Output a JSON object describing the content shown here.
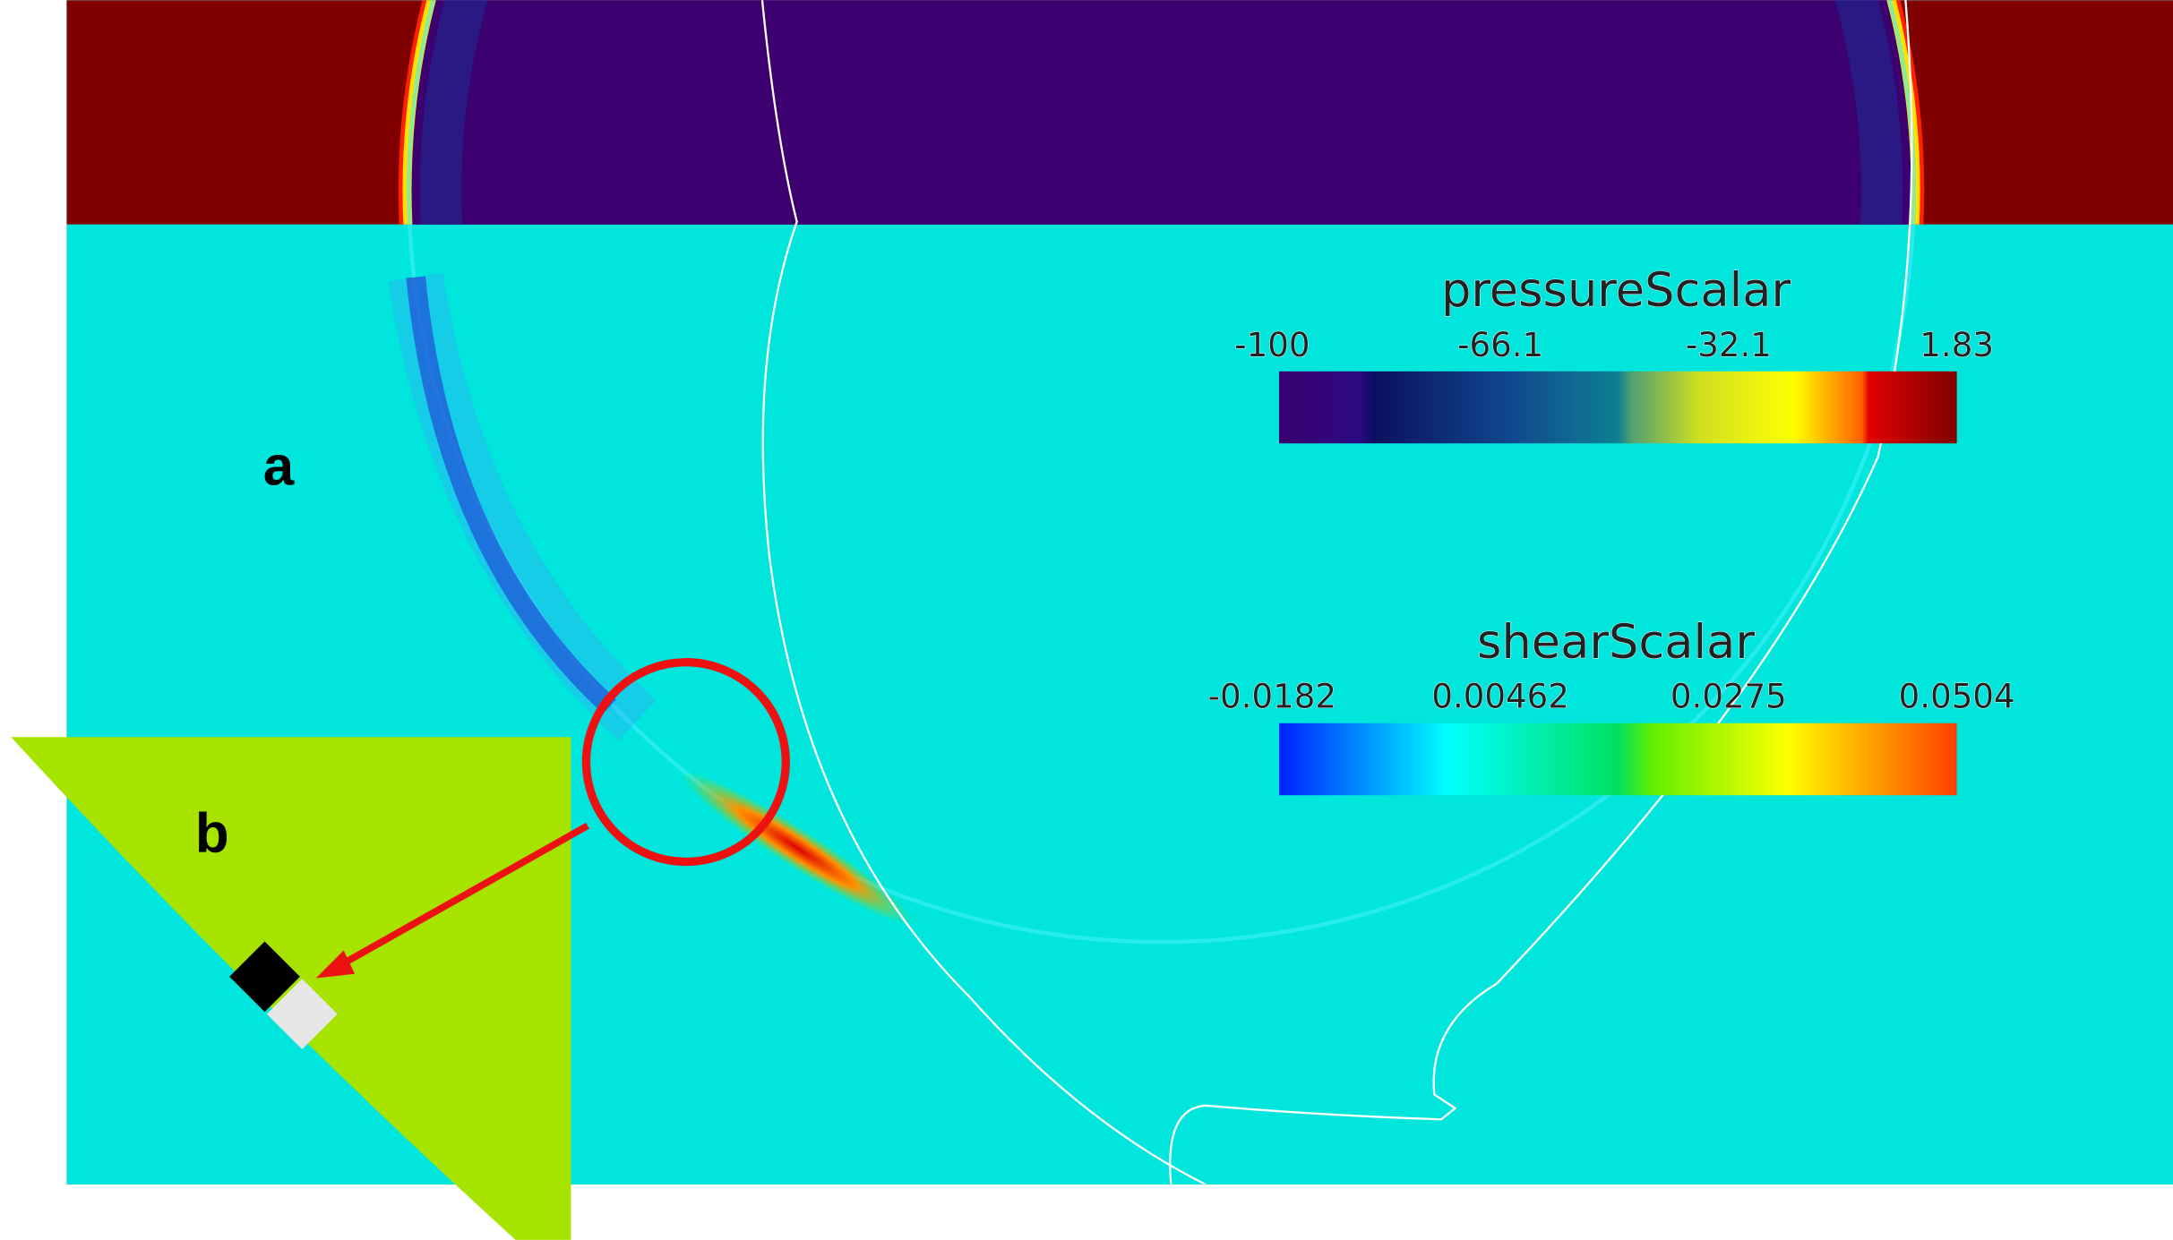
{
  "panels": [
    {
      "label": "a"
    },
    {
      "label": "b"
    }
  ],
  "legends": [
    {
      "title": "pressureScalar",
      "ticks": [
        -100,
        -66.1,
        -32.1,
        1.83
      ]
    },
    {
      "title": "shearScalar",
      "ticks": [
        -0.0182,
        0.00462,
        0.0275,
        0.0504
      ]
    }
  ]
}
